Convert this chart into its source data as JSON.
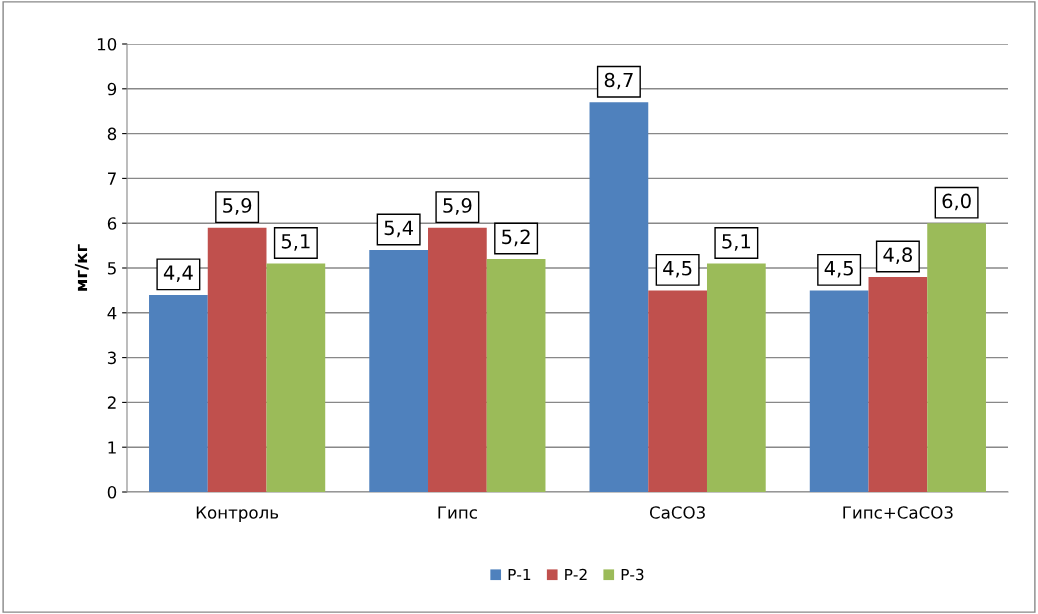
{
  "chart_data": {
    "type": "bar",
    "ylabel": "мг/кг",
    "categories": [
      "Контроль",
      "Гипс",
      "CaCO3",
      "Гипс+CaCO3"
    ],
    "series": [
      {
        "name": "Р-1",
        "color": "#4f81bd",
        "values": [
          4.4,
          5.4,
          8.7,
          4.5
        ],
        "value_labels": [
          "4,4",
          "5,4",
          "8,7",
          "4,5"
        ]
      },
      {
        "name": "Р-2",
        "color": "#c0504d",
        "values": [
          5.9,
          5.9,
          4.5,
          4.8
        ],
        "value_labels": [
          "5,9",
          "5,9",
          "4,5",
          "4,8"
        ]
      },
      {
        "name": "Р-3",
        "color": "#9bbb59",
        "values": [
          5.1,
          5.2,
          5.1,
          6.0
        ],
        "value_labels": [
          "5,1",
          "5,2",
          "5,1",
          "6,0"
        ]
      }
    ],
    "ylim": [
      0,
      10
    ],
    "yticks": [
      0,
      1,
      2,
      3,
      4,
      5,
      6,
      7,
      8,
      9,
      10
    ],
    "grid": "y",
    "legend": "bottom"
  }
}
